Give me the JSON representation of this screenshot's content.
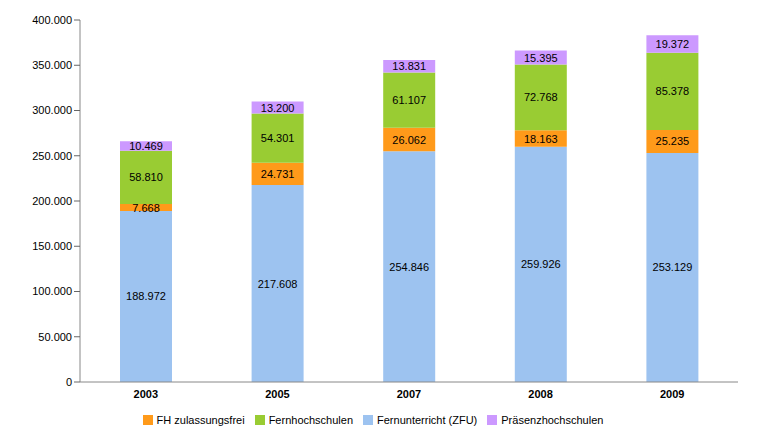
{
  "chart_data": {
    "type": "bar",
    "stacked": true,
    "data_labels": true,
    "grid": false,
    "legend": "bottom",
    "categories": [
      "2003",
      "2005",
      "2007",
      "2008",
      "2009"
    ],
    "series": [
      {
        "name": "Fernunterricht (ZFU)",
        "color": "#9DC3F0",
        "values": [
          188972,
          217608,
          254846,
          259926,
          253129
        ],
        "value_labels": [
          "188.972",
          "217.608",
          "254.846",
          "259.926",
          "253.129"
        ]
      },
      {
        "name": "FH zulassungsfrei",
        "color": "#FF9A1A",
        "values": [
          7668,
          24731,
          26062,
          18163,
          25235
        ],
        "value_labels": [
          "7.668",
          "24.731",
          "26.062",
          "18.163",
          "25.235"
        ]
      },
      {
        "name": "Fernhochschulen",
        "color": "#99CC33",
        "values": [
          58810,
          54301,
          61107,
          72768,
          85378
        ],
        "value_labels": [
          "58.810",
          "54.301",
          "61.107",
          "72.768",
          "85.378"
        ]
      },
      {
        "name": "Präsenzhochschulen",
        "color": "#CC99FF",
        "values": [
          10469,
          13200,
          13831,
          15395,
          19372
        ],
        "value_labels": [
          "10.469",
          "13.200",
          "13.831",
          "15.395",
          "19.372"
        ]
      }
    ],
    "ylim": [
      0,
      400000
    ],
    "yticks": [
      0,
      {
        "value": 50000,
        "label": "50.000"
      },
      {
        "value": 100000,
        "label": "100.000"
      },
      {
        "value": 150000,
        "label": "150.000"
      },
      {
        "value": 200000,
        "label": "200.000"
      },
      {
        "value": 250000,
        "label": "250.000"
      },
      {
        "value": 300000,
        "label": "300.000"
      },
      {
        "value": 350000,
        "label": "350.000"
      },
      {
        "value": 400000,
        "label": "400.000"
      }
    ]
  }
}
